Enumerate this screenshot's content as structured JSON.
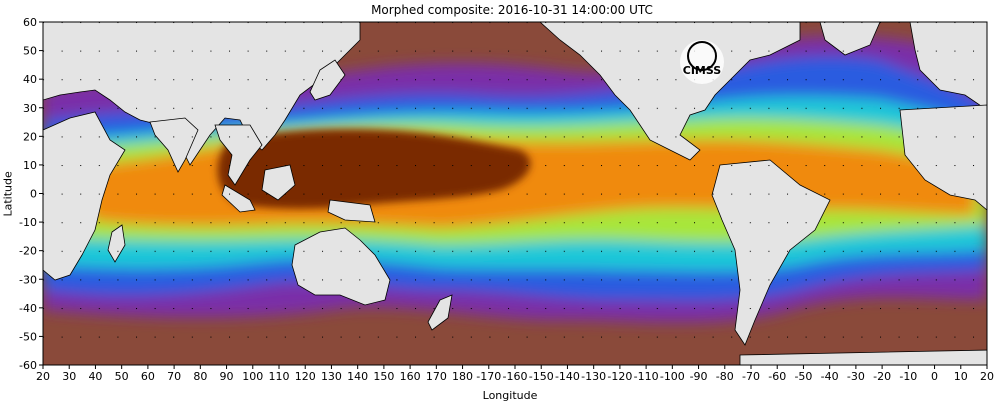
{
  "title": "Morphed composite: 2016-10-31 14:00:00 UTC",
  "axes": {
    "xlabel": "Longitude",
    "ylabel": "Latitude",
    "x_ticks": [
      "20",
      "30",
      "40",
      "50",
      "60",
      "70",
      "80",
      "90",
      "100",
      "110",
      "120",
      "130",
      "140",
      "150",
      "160",
      "170",
      "180",
      "-170",
      "-160",
      "-150",
      "-140",
      "-130",
      "-120",
      "-110",
      "-100",
      "-90",
      "-80",
      "-70",
      "-60",
      "-50",
      "-40",
      "-30",
      "-20",
      "-10",
      "0",
      "10",
      "20"
    ],
    "y_ticks": [
      "60",
      "50",
      "40",
      "30",
      "20",
      "10",
      "0",
      "-10",
      "-20",
      "-30",
      "-40",
      "-50",
      "-60"
    ]
  },
  "logo": {
    "text": "CIMSS"
  },
  "colors": {
    "land": "#e4e4e4",
    "dry": "#8a4a3a",
    "low": "#7a2fa8",
    "mid_low": "#2a5be0",
    "mid": "#1fc8d8",
    "mid_high": "#a8e63a",
    "high": "#f08a10",
    "max": "#7a2a05"
  }
}
